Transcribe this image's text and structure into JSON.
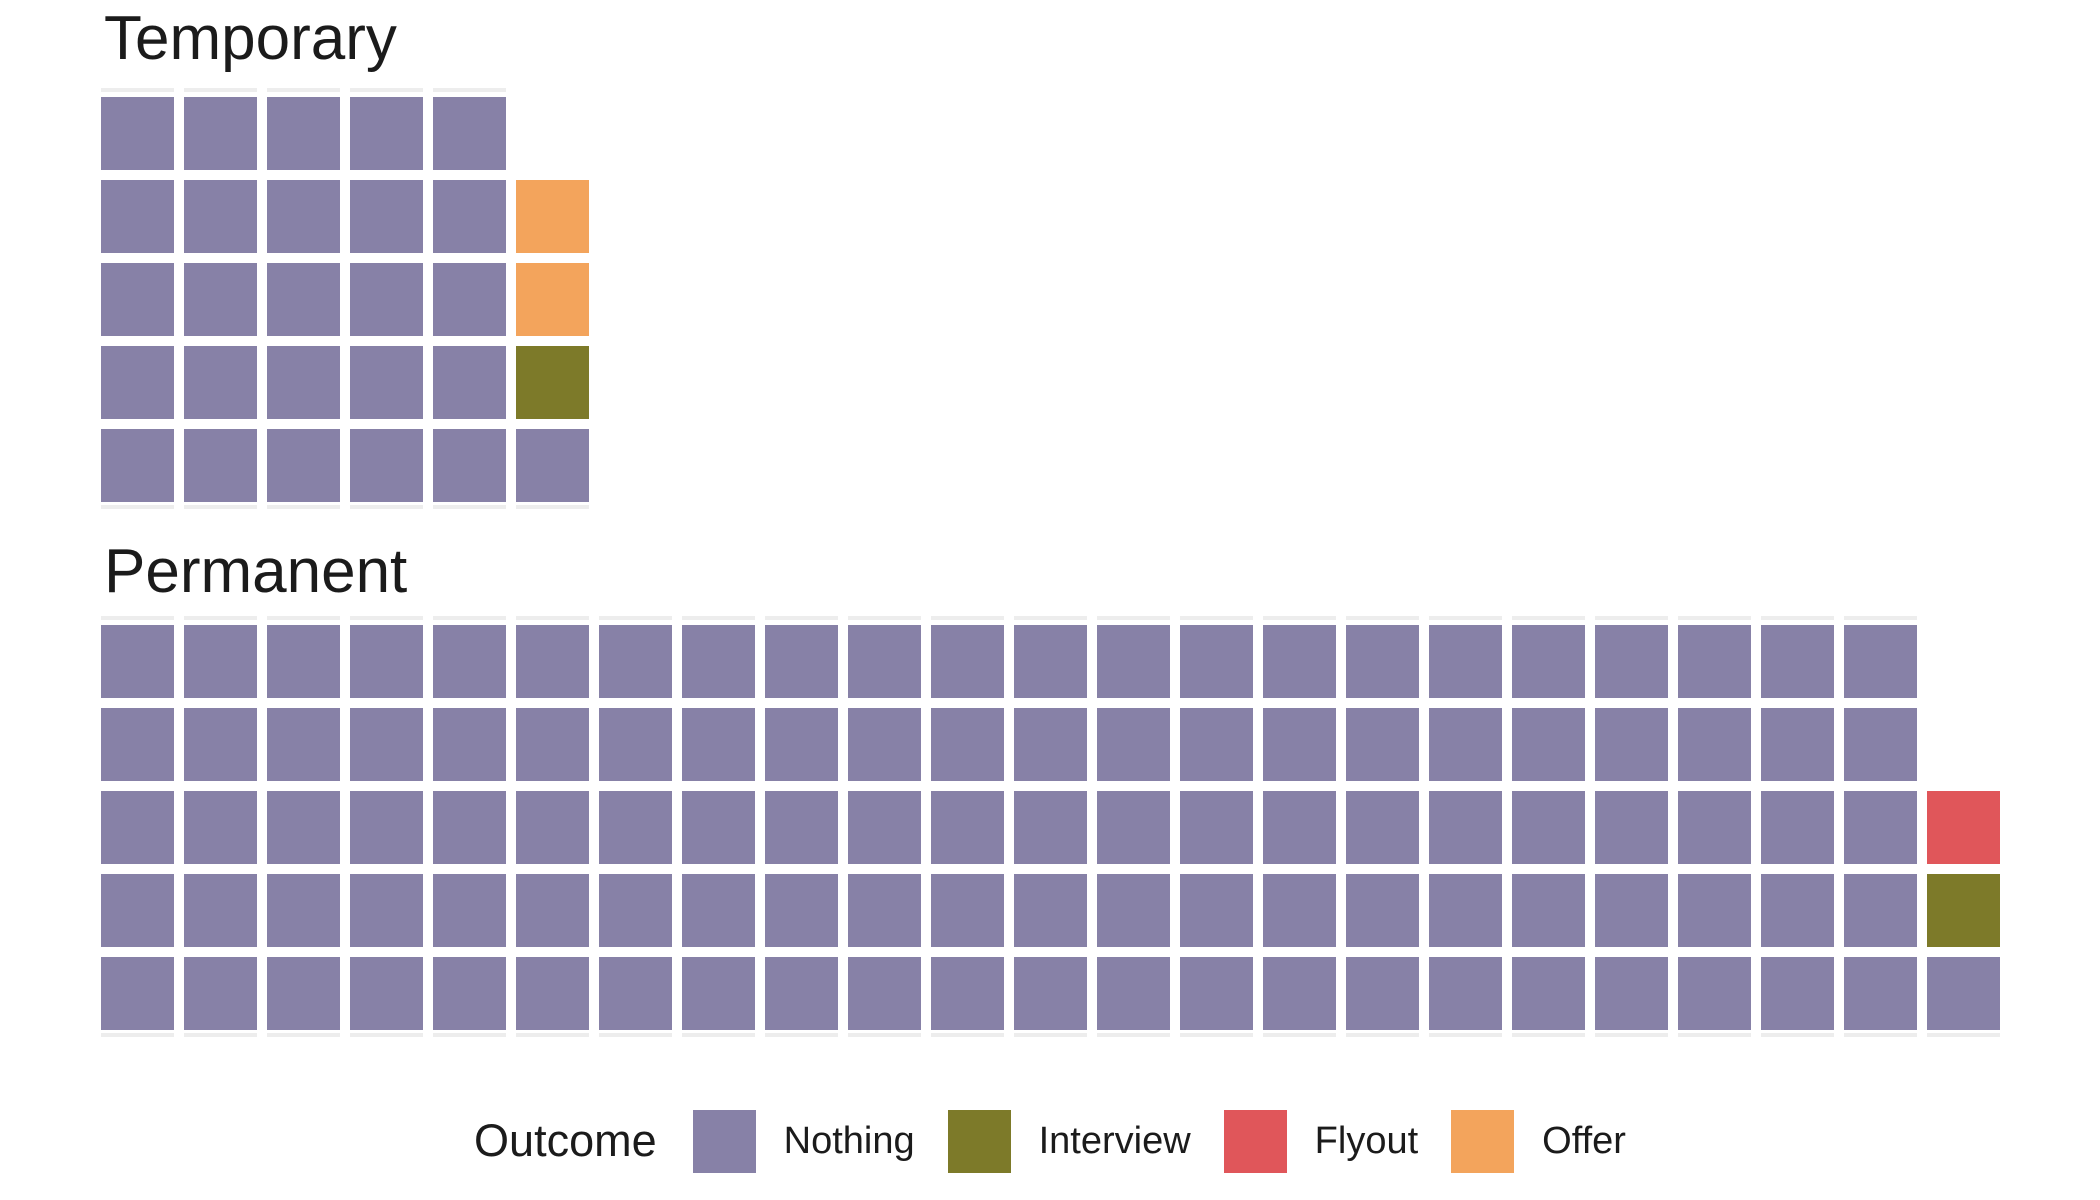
{
  "chart_data": {
    "type": "waffle",
    "rows": 5,
    "fill_order": "column-major, bottom-to-top, left-to-right",
    "legend_title": "Outcome",
    "categories": [
      {
        "label": "Nothing",
        "color": "#8781A7"
      },
      {
        "label": "Interview",
        "color": "#7D7A29"
      },
      {
        "label": "Flyout",
        "color": "#E0565A"
      },
      {
        "label": "Offer",
        "color": "#F3A45C"
      }
    ],
    "panels": [
      {
        "title": "Temporary",
        "total": 29,
        "counts": {
          "Nothing": 26,
          "Interview": 1,
          "Flyout": 0,
          "Offer": 2
        }
      },
      {
        "title": "Permanent",
        "total": 113,
        "counts": {
          "Nothing": 111,
          "Interview": 1,
          "Flyout": 1,
          "Offer": 0
        }
      }
    ]
  },
  "colors": {
    "background": "#FFFFFF",
    "text": "#1B1B1B",
    "clipped_row_hint": "#EDEDED"
  }
}
